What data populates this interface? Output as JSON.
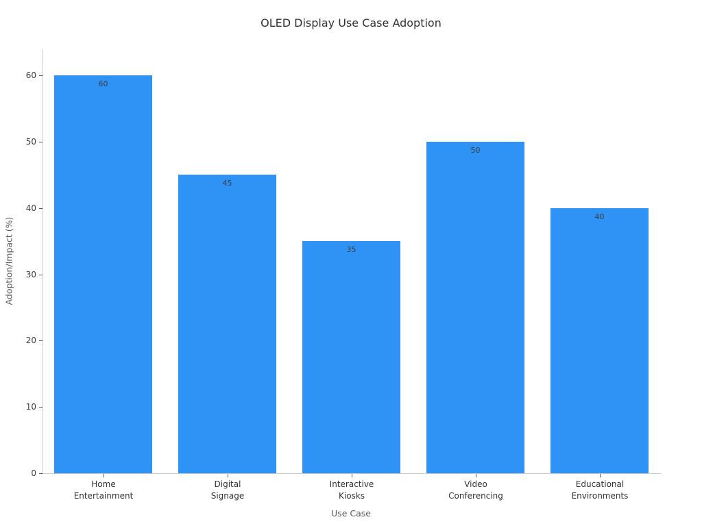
{
  "chart_data": {
    "type": "bar",
    "title": "OLED Display Use Case Adoption",
    "xlabel": "Use Case",
    "ylabel": "Adoption/Impact (%)",
    "categories": [
      "Home\nEntertainment",
      "Digital\nSignage",
      "Interactive\nKiosks",
      "Video\nConferencing",
      "Educational\nEnvironments"
    ],
    "values": [
      60,
      45,
      35,
      50,
      40
    ],
    "value_labels": [
      "60",
      "45",
      "35",
      "50",
      "40"
    ],
    "value_label_position": "inside-top",
    "ylim": [
      0,
      60
    ],
    "yticks": [
      0,
      10,
      20,
      30,
      40,
      50,
      60
    ],
    "grid": false,
    "legend": null,
    "bar_color": "#2E93F5",
    "spine_color": "#cccccc",
    "tick_color": "#555555",
    "title_color": "#323232",
    "axis_label_color": "#5a5a5a",
    "tick_label_color": "#3c3c3c"
  }
}
